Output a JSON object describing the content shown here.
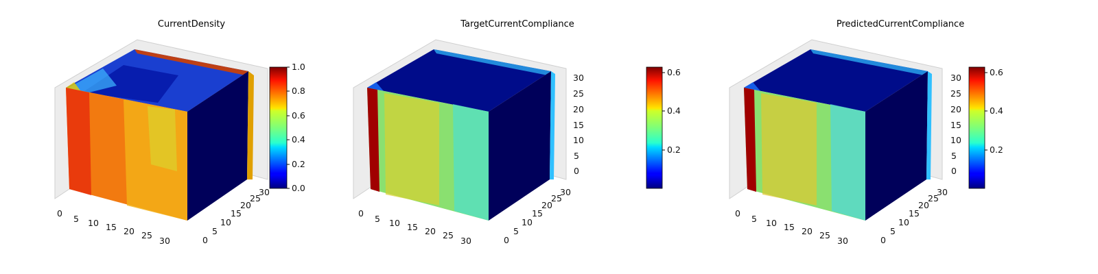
{
  "figure": {
    "panels": [
      {
        "title": "CurrentDensity",
        "colorbar": {
          "min": 0.0,
          "max": 1.0,
          "ticks": [
            "0.0",
            "0.2",
            "0.4",
            "0.6",
            "0.8",
            "1.0"
          ]
        },
        "x_ticks": [
          "0",
          "5",
          "10",
          "15",
          "20",
          "25",
          "30"
        ],
        "y_ticks": [
          "0",
          "5",
          "10",
          "15",
          "20",
          "25",
          "30"
        ],
        "z_ticks": []
      },
      {
        "title": "TargetCurrentCompliance",
        "colorbar": {
          "min": 0.0,
          "max": 0.64,
          "ticks": [
            "0.2",
            "0.4",
            "0.6"
          ]
        },
        "x_ticks": [
          "0",
          "5",
          "10",
          "15",
          "20",
          "25",
          "30"
        ],
        "y_ticks": [
          "0",
          "5",
          "10",
          "15",
          "20",
          "25",
          "30"
        ],
        "z_ticks": [
          "0",
          "5",
          "10",
          "15",
          "20",
          "25",
          "30"
        ]
      },
      {
        "title": "PredictedCurrentCompliance",
        "colorbar": {
          "min": 0.0,
          "max": 0.64,
          "ticks": [
            "0.2",
            "0.4",
            "0.6"
          ]
        },
        "x_ticks": [
          "0",
          "5",
          "10",
          "15",
          "20",
          "25",
          "30"
        ],
        "y_ticks": [
          "0",
          "5",
          "10",
          "15",
          "20",
          "25",
          "30"
        ],
        "z_ticks": [
          "0",
          "5",
          "10",
          "15",
          "20",
          "25",
          "30"
        ]
      }
    ]
  },
  "chart_data": [
    {
      "type": "heatmap",
      "title": "CurrentDensity",
      "colormap": "jet",
      "value_range": [
        0.0,
        1.0
      ],
      "x_range": [
        0,
        32
      ],
      "y_range": [
        0,
        32
      ],
      "z_range": [
        0,
        32
      ]
    },
    {
      "type": "heatmap",
      "title": "TargetCurrentCompliance",
      "colormap": "jet",
      "value_range": [
        0.0,
        0.64
      ],
      "x_range": [
        0,
        32
      ],
      "y_range": [
        0,
        32
      ],
      "z_range": [
        0,
        32
      ]
    },
    {
      "type": "heatmap",
      "title": "PredictedCurrentCompliance",
      "colormap": "jet",
      "value_range": [
        0.0,
        0.64
      ],
      "x_range": [
        0,
        32
      ],
      "y_range": [
        0,
        32
      ],
      "z_range": [
        0,
        32
      ]
    }
  ]
}
